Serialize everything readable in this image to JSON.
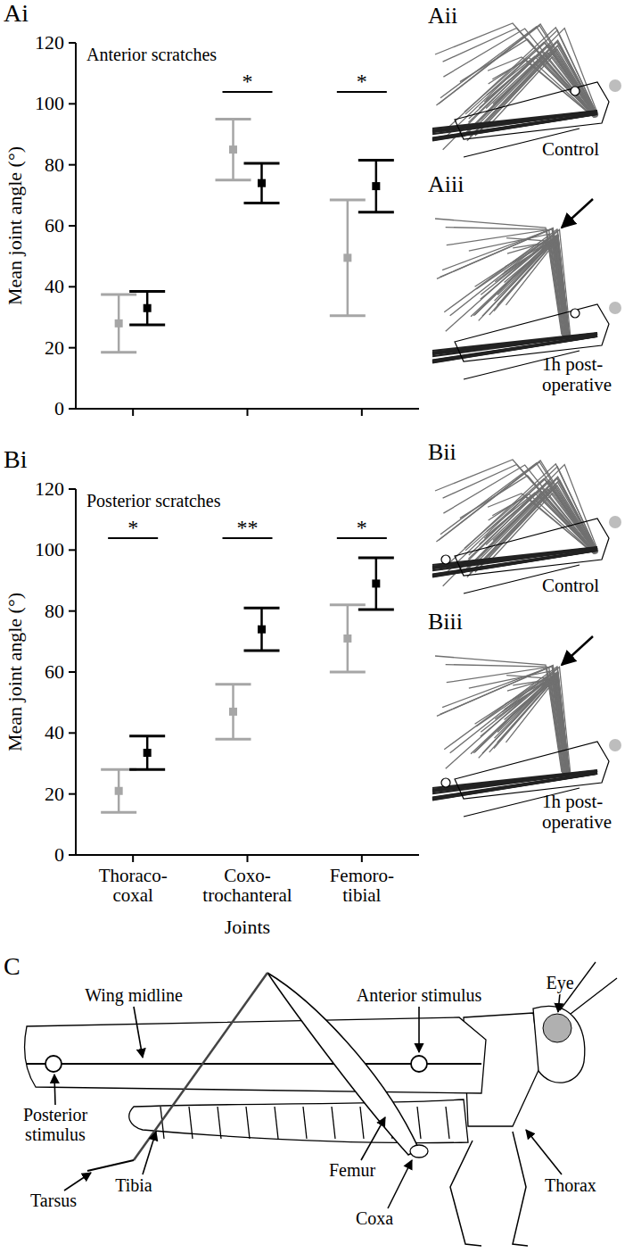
{
  "chart_data": [
    {
      "type": "errorbar",
      "panel_label": "Ai",
      "title": "Anterior scratches",
      "ylabel": "Mean joint angle (°)",
      "categories": [
        null,
        null,
        null
      ],
      "series": [
        {
          "color": "#a6a6a6",
          "marker": "square",
          "values": [
            28,
            85,
            49.5
          ],
          "errors": [
            9.5,
            10,
            19
          ]
        },
        {
          "color": "#000000",
          "marker": "square",
          "values": [
            33,
            74,
            73
          ],
          "errors": [
            5.5,
            6.5,
            8.5
          ]
        }
      ],
      "significance": [
        null,
        "*",
        "*"
      ],
      "ylim": [
        0,
        120
      ],
      "yticks": [
        0,
        20,
        40,
        60,
        80,
        100,
        120
      ],
      "tick_labels": "y"
    },
    {
      "type": "errorbar",
      "panel_label": "Bi",
      "title": "Posterior scratches",
      "ylabel": "Mean joint angle (°)",
      "xlabel": "Joints",
      "categories": [
        "Thoraco-coxal",
        "Coxo-trochanteral",
        "Femoro-tibial"
      ],
      "series": [
        {
          "color": "#a6a6a6",
          "marker": "square",
          "values": [
            21,
            47,
            71
          ],
          "errors": [
            7,
            9,
            11
          ]
        },
        {
          "color": "#000000",
          "marker": "square",
          "values": [
            33.5,
            74,
            89
          ],
          "errors": [
            5.5,
            7,
            8.5
          ]
        }
      ],
      "significance": [
        "*",
        "**",
        "*"
      ],
      "ylim": [
        0,
        120
      ],
      "yticks": [
        0,
        20,
        40,
        60,
        80,
        100,
        120
      ]
    }
  ],
  "diagrams": [
    {
      "panel_label": "Aii",
      "caption": "Control"
    },
    {
      "panel_label": "Aiii",
      "caption": "1h post-operative"
    },
    {
      "panel_label": "Bii",
      "caption": "Control"
    },
    {
      "panel_label": "Biii",
      "caption": "1h post-operative"
    }
  ],
  "body_diagram": {
    "panel_label": "C",
    "labels": [
      "Wing midline",
      "Anterior stimulus",
      "Eye",
      "Posterior stimulus",
      "Tibia",
      "Femur",
      "Coxa",
      "Thorax",
      "Tarsus"
    ]
  }
}
